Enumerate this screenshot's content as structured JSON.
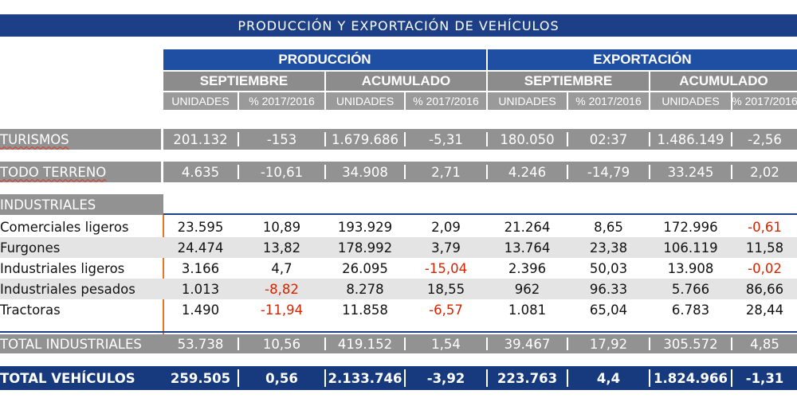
{
  "title": "PRODUCCIÓN Y EXPORTACIÓN DE VEHÍCULOS",
  "groups": [
    "PRODUCCIÓN",
    "EXPORTACIÓN"
  ],
  "periods": [
    "SEPTIEMBRE",
    "ACUMULADO",
    "SEPTIEMBRE",
    "ACUMULADO"
  ],
  "col_headers": [
    "UNIDADES",
    "% 2017/2016",
    "UNIDADES",
    "% 2017/2016",
    "UNIDADES",
    "% 2017/2016",
    "UNIDADES",
    "% 2017/2016"
  ],
  "rows": {
    "turismos": {
      "label": "TURISMOS",
      "values": [
        "201.132",
        "-153",
        "1.679.686",
        "-5,31",
        "180.050",
        "02:37",
        "1.486.149",
        "-2,56"
      ]
    },
    "todo_terreno": {
      "label": "TODO TERRENO",
      "values": [
        "4.635",
        "-10,61",
        "34.908",
        "2,71",
        "4.246",
        "-14,79",
        "33.245",
        "2,02"
      ]
    },
    "industriales_header": {
      "label": "INDUSTRIALES"
    },
    "comerciales_ligeros": {
      "label": "Comerciales ligeros",
      "values": [
        "23.595",
        "10,89",
        "193.929",
        "2,09",
        "21.264",
        "8,65",
        "172.996",
        "-0,61"
      ]
    },
    "furgones": {
      "label": "Furgones",
      "values": [
        "24.474",
        "13,82",
        "178.992",
        "3,79",
        "13.764",
        "23,38",
        "106.119",
        "11,58"
      ]
    },
    "industriales_ligeros": {
      "label": "Industriales ligeros",
      "values": [
        "3.166",
        "4,7",
        "26.095",
        "-15,04",
        "2.396",
        "50,03",
        "13.908",
        "-0,02"
      ]
    },
    "industriales_pesados": {
      "label": "Industriales pesados",
      "values": [
        "1.013",
        "-8,82",
        "8.278",
        "18,55",
        "962",
        "96.33",
        "5.766",
        "86,66"
      ]
    },
    "tractoras": {
      "label": "Tractoras",
      "values": [
        "1.490",
        "-11,94",
        "11.858",
        "-6,57",
        "1.081",
        "65,04",
        "6.783",
        "28,44"
      ]
    },
    "total_industriales": {
      "label": "TOTAL INDUSTRIALES",
      "values": [
        "53.738",
        "10,56",
        "419.152",
        "1,54",
        "39.467",
        "17,92",
        "305.572",
        "4,85"
      ]
    },
    "total_vehiculos": {
      "label": "TOTAL VEHÍCULOS",
      "values": [
        "259.505",
        "0,56",
        "2.133.746",
        "-3,92",
        "223.763",
        "4,4",
        "1.824.966",
        "-1,31"
      ]
    }
  },
  "colors": {
    "navy": "#1d3f87",
    "blue_header": "#1f4fa3",
    "gray_band": "#929292",
    "light_band": "#e4e4e4",
    "negative": "#d62400",
    "accent_line": "#e87722"
  }
}
